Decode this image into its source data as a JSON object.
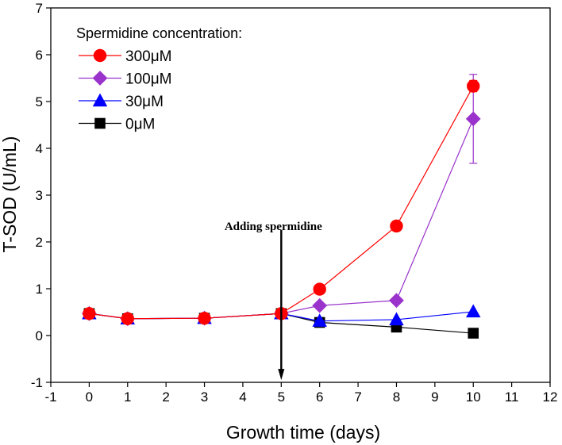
{
  "chart_data": {
    "type": "line",
    "xlabel": "Growth time (days)",
    "ylabel": "T-SOD (U/mL)",
    "xlim": [
      -1,
      12
    ],
    "ylim": [
      -1,
      7
    ],
    "xticks": [
      "-1",
      "0",
      "1",
      "2",
      "3",
      "4",
      "5",
      "6",
      "7",
      "8",
      "9",
      "10",
      "11",
      "12"
    ],
    "yticks": [
      "-1",
      "0",
      "1",
      "2",
      "3",
      "4",
      "5",
      "6",
      "7"
    ],
    "legend_title": "Spermidine concentration:",
    "legend_position": "top-left",
    "annotation": {
      "text": "Adding spermidine",
      "x": 5,
      "arrow_from_y": 2.05,
      "arrow_to_y": -0.85
    },
    "series": [
      {
        "name": "300μM",
        "color": "#ff0000",
        "marker": "circle",
        "x": [
          0,
          1,
          3,
          5,
          6,
          8,
          10
        ],
        "y": [
          0.47,
          0.36,
          0.37,
          0.47,
          0.99,
          2.34,
          5.33
        ],
        "err": [
          0,
          0,
          0,
          0,
          0,
          0,
          0.12
        ]
      },
      {
        "name": "100μM",
        "color": "#9933cc",
        "marker": "diamond",
        "x": [
          0,
          1,
          3,
          5,
          6,
          8,
          10
        ],
        "y": [
          0.47,
          0.36,
          0.37,
          0.47,
          0.64,
          0.75,
          4.63
        ],
        "err": [
          0,
          0,
          0,
          0,
          0,
          0,
          0.95
        ]
      },
      {
        "name": "30μM",
        "color": "#0000ff",
        "marker": "triangle",
        "x": [
          0,
          1,
          3,
          5,
          6,
          8,
          10
        ],
        "y": [
          0.47,
          0.36,
          0.37,
          0.47,
          0.31,
          0.34,
          0.51
        ],
        "err": [
          0,
          0,
          0,
          0,
          0,
          0,
          0
        ]
      },
      {
        "name": "0μM",
        "color": "#000000",
        "marker": "square",
        "x": [
          0,
          1,
          3,
          5,
          6,
          8,
          10
        ],
        "y": [
          0.47,
          0.36,
          0.37,
          0.47,
          0.28,
          0.18,
          0.05
        ],
        "err": [
          0,
          0,
          0,
          0,
          0,
          0,
          0
        ]
      }
    ]
  }
}
